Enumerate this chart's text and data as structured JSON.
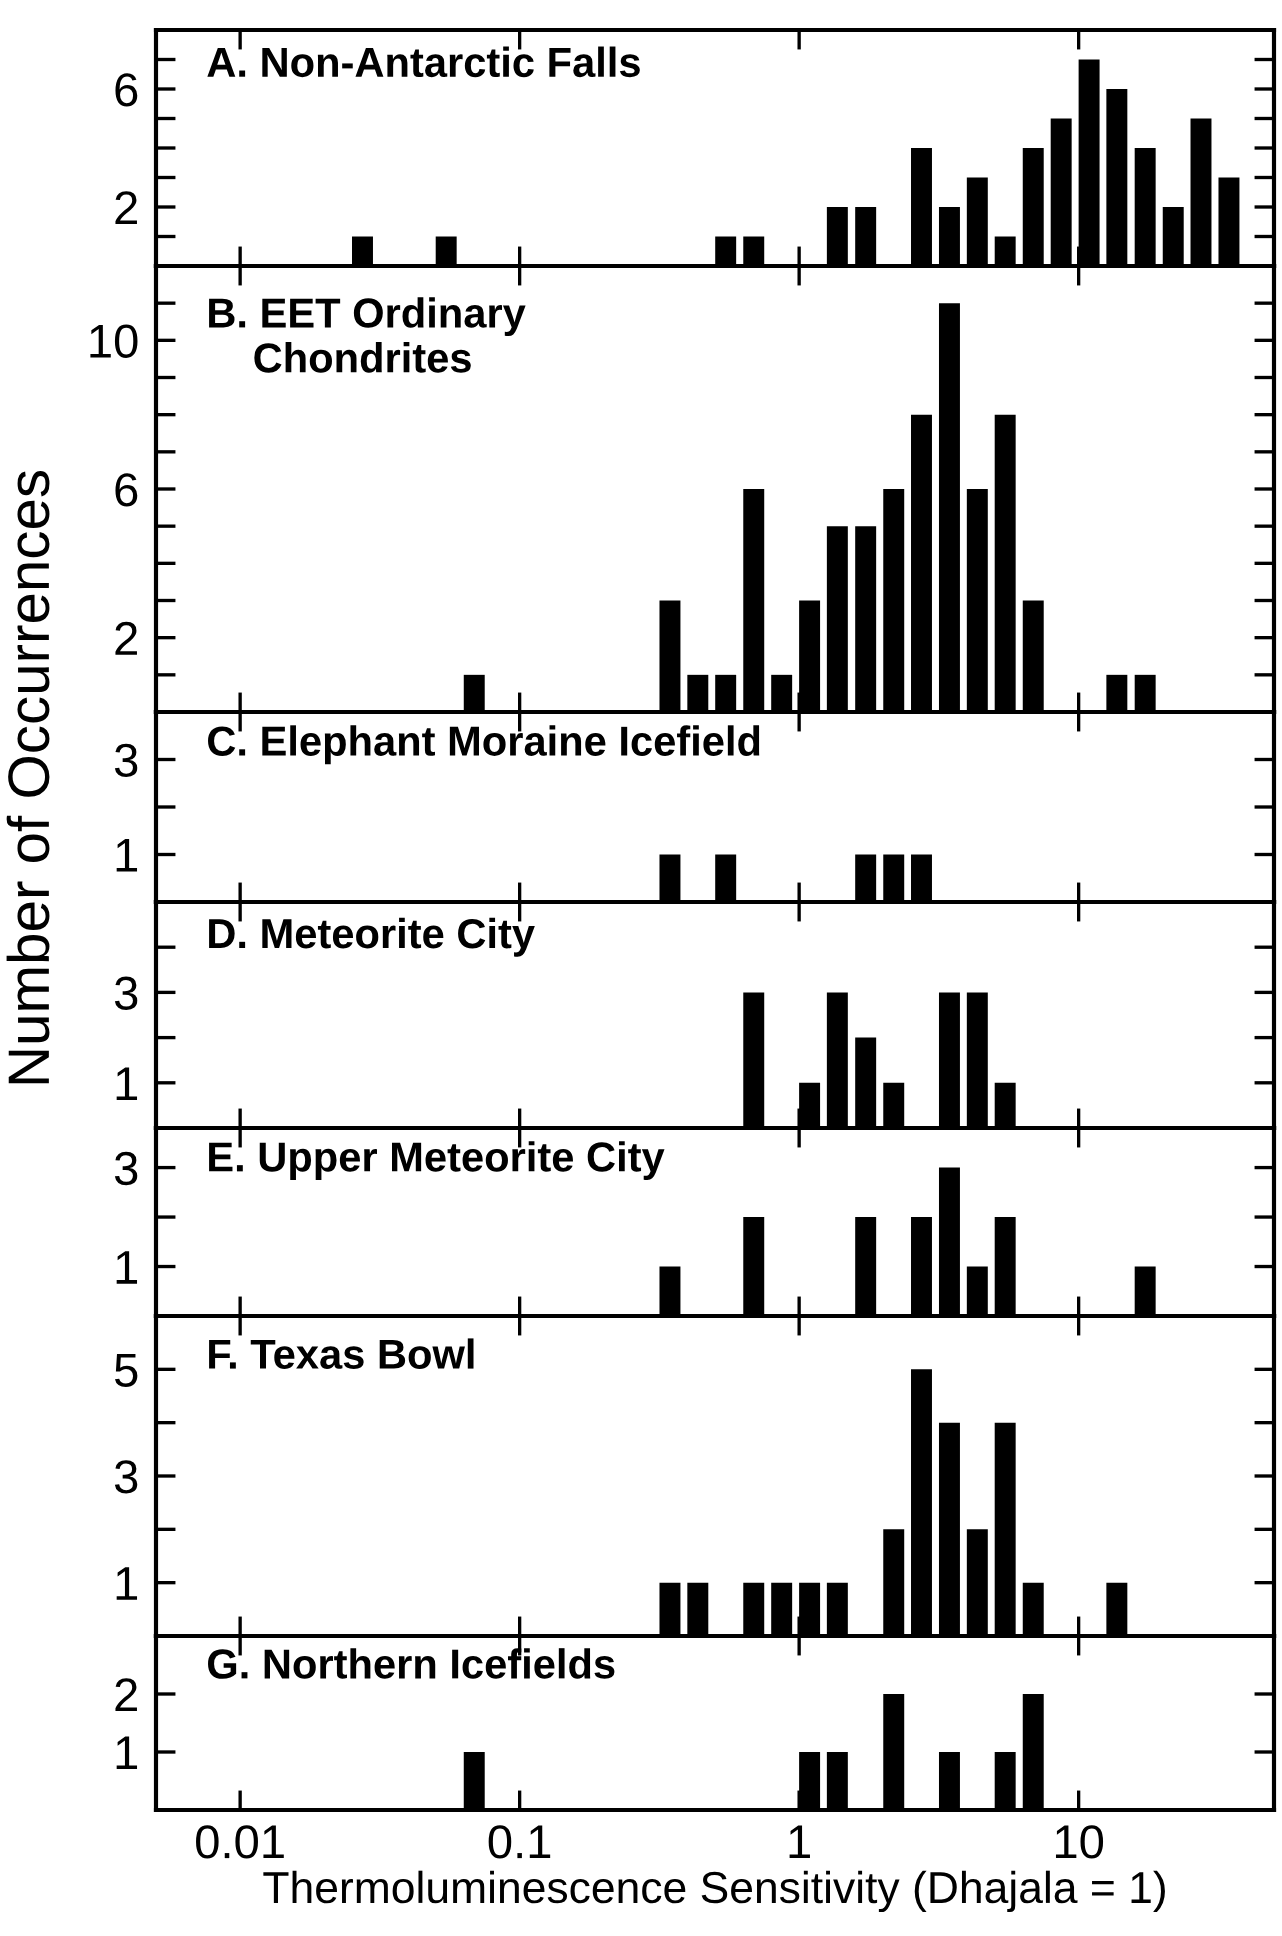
{
  "chart_data": [
    {
      "type": "bar",
      "title": "A. Non-Antarctic Falls",
      "log": "x",
      "tick_labels": "y",
      "xlim": [
        0.005,
        50
      ],
      "xticks": [
        0.01,
        0.1,
        1,
        10
      ],
      "ylim": [
        0,
        8
      ],
      "yticks": [
        {
          "value": 1,
          "label": null
        },
        2,
        {
          "value": 3,
          "label": null
        },
        {
          "value": 4,
          "label": null
        },
        {
          "value": 5,
          "label": null
        },
        6,
        {
          "value": 7,
          "label": null
        }
      ],
      "color": "#000000",
      "x": [
        0.0274,
        0.0546,
        0.546,
        0.688,
        1.37,
        1.73,
        2.74,
        3.45,
        4.34,
        5.46,
        6.88,
        8.66,
        10.9,
        13.7,
        17.3,
        21.8,
        27.4,
        34.5
      ],
      "values": [
        1,
        1,
        1,
        1,
        2,
        2,
        4,
        2,
        3,
        1,
        4,
        5,
        7,
        6,
        4,
        2,
        5,
        3
      ]
    },
    {
      "type": "bar",
      "title": "B. EET Ordinary\n    Chondrites",
      "log": "x",
      "tick_labels": "y",
      "xlim": [
        0.005,
        50
      ],
      "xticks": [
        0.01,
        0.1,
        1,
        10
      ],
      "ylim": [
        0,
        12
      ],
      "yticks": [
        {
          "value": 1,
          "label": null
        },
        2,
        {
          "value": 3,
          "label": null
        },
        {
          "value": 4,
          "label": null
        },
        {
          "value": 5,
          "label": null
        },
        6,
        {
          "value": 7,
          "label": null
        },
        {
          "value": 8,
          "label": null
        },
        {
          "value": 9,
          "label": null
        },
        10,
        {
          "value": 11,
          "label": null
        }
      ],
      "color": "#000000",
      "x": [
        0.0688,
        0.345,
        0.434,
        0.546,
        0.688,
        0.866,
        1.09,
        1.37,
        1.73,
        2.18,
        2.74,
        3.45,
        4.34,
        5.46,
        6.88,
        13.7,
        17.3
      ],
      "values": [
        1,
        3,
        1,
        1,
        6,
        1,
        3,
        5,
        5,
        6,
        8,
        11,
        6,
        8,
        3,
        1,
        1
      ]
    },
    {
      "type": "bar",
      "title": "C. Elephant Moraine Icefield",
      "ylabel": "Number of Occurrences",
      "log": "x",
      "tick_labels": "y",
      "xlim": [
        0.005,
        50
      ],
      "xticks": [
        0.01,
        0.1,
        1,
        10
      ],
      "ylim": [
        0,
        4
      ],
      "yticks": [
        1,
        {
          "value": 2,
          "label": null
        },
        3
      ],
      "color": "#000000",
      "x": [
        0.345,
        0.546,
        1.73,
        2.18,
        2.74
      ],
      "values": [
        1,
        1,
        1,
        1,
        1
      ]
    },
    {
      "type": "bar",
      "title": "D. Meteorite City",
      "log": "x",
      "tick_labels": "y",
      "xlim": [
        0.005,
        50
      ],
      "xticks": [
        0.01,
        0.1,
        1,
        10
      ],
      "ylim": [
        0,
        5
      ],
      "yticks": [
        1,
        {
          "value": 2,
          "label": null
        },
        3,
        {
          "value": 4,
          "label": null
        }
      ],
      "color": "#000000",
      "x": [
        0.688,
        1.09,
        1.37,
        1.73,
        2.18,
        3.45,
        4.34,
        5.46
      ],
      "values": [
        3,
        1,
        3,
        2,
        1,
        3,
        3,
        1
      ]
    },
    {
      "type": "bar",
      "title": "E. Upper Meteorite City",
      "log": "x",
      "tick_labels": "y",
      "xlim": [
        0.005,
        50
      ],
      "xticks": [
        0.01,
        0.1,
        1,
        10
      ],
      "ylim": [
        0,
        3.8
      ],
      "yticks": [
        1,
        {
          "value": 2,
          "label": null
        },
        3
      ],
      "color": "#000000",
      "x": [
        0.345,
        0.688,
        1.73,
        2.74,
        3.45,
        4.34,
        5.46,
        17.3
      ],
      "values": [
        1,
        2,
        2,
        2,
        3,
        1,
        2,
        1
      ]
    },
    {
      "type": "bar",
      "title": "F. Texas Bowl",
      "log": "x",
      "tick_labels": "y",
      "xlim": [
        0.005,
        50
      ],
      "xticks": [
        0.01,
        0.1,
        1,
        10
      ],
      "ylim": [
        0,
        6
      ],
      "yticks": [
        1,
        {
          "value": 2,
          "label": null
        },
        3,
        {
          "value": 4,
          "label": null
        },
        5
      ],
      "color": "#000000",
      "x": [
        0.345,
        0.434,
        0.688,
        0.866,
        1.09,
        1.37,
        2.18,
        2.74,
        3.45,
        4.34,
        5.46,
        6.88,
        13.7
      ],
      "values": [
        1,
        1,
        1,
        1,
        1,
        1,
        2,
        5,
        4,
        2,
        4,
        1,
        1
      ]
    },
    {
      "type": "bar",
      "title": "G. Northern Icefields",
      "xlabel": "Thermoluminescence Sensitivity (Dhajala = 1)",
      "log": "x",
      "xlim": [
        0.005,
        50
      ],
      "xticks": [
        0.01,
        0.1,
        1,
        10
      ],
      "ylim": [
        0,
        3
      ],
      "yticks": [
        1,
        2
      ],
      "color": "#000000",
      "x": [
        0.0688,
        1.09,
        1.37,
        2.18,
        3.45,
        5.46,
        6.88
      ],
      "values": [
        1,
        1,
        1,
        2,
        1,
        1,
        2
      ]
    }
  ]
}
